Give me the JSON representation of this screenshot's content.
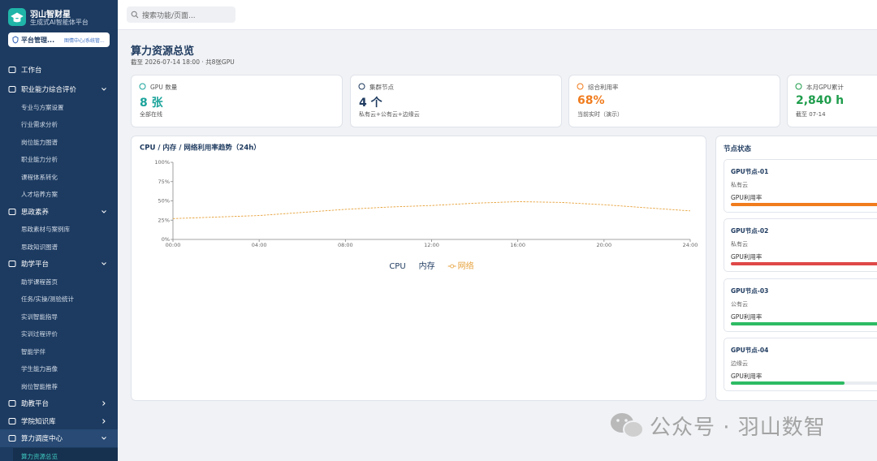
{
  "sidebar": {
    "brand": "羽山智财星",
    "tagline": "生成式AI智能体平台",
    "role_button": {
      "label": "平台管理...",
      "sub": "图情中心/系统管..."
    },
    "menu": [
      {
        "label": "工作台"
      },
      {
        "label": "职业能力综合评价",
        "expanded": true,
        "children": [
          {
            "label": "专业与方案设置"
          },
          {
            "label": "行业需求分析"
          },
          {
            "label": "岗位能力图谱"
          },
          {
            "label": "职业能力分析"
          },
          {
            "label": "课程体系转化"
          },
          {
            "label": "人才培养方案"
          }
        ]
      },
      {
        "label": "思政素养",
        "expanded": true,
        "children": [
          {
            "label": "思政素材与案例库"
          },
          {
            "label": "思政知识图谱"
          }
        ]
      },
      {
        "label": "助学平台",
        "expanded": true,
        "children": [
          {
            "label": "助学课程首页"
          },
          {
            "label": "任务/实操/测验统计"
          },
          {
            "label": "实训智能指导"
          },
          {
            "label": "实训过程评价"
          },
          {
            "label": "智能学伴"
          },
          {
            "label": "学生能力画像"
          },
          {
            "label": "岗位智能推荐"
          }
        ]
      },
      {
        "label": "助教平台",
        "expanded": false
      },
      {
        "label": "学院知识库",
        "expanded": false
      },
      {
        "label": "算力调度中心",
        "expanded": true,
        "children": [
          {
            "label": "算力资源总览",
            "active": true
          }
        ]
      }
    ]
  },
  "topbar": {
    "search_placeholder": "搜索功能/页面..."
  },
  "header": {
    "title": "算力资源总览",
    "subtitle": "截至 2026-07-14 18:00 · 共8张GPU"
  },
  "kpis": [
    {
      "label": "GPU 数量",
      "value": "8 张",
      "note": "全部在线",
      "color": "#1aa39a"
    },
    {
      "label": "集群节点",
      "value": "4 个",
      "note": "私有云+公有云+边缘云",
      "color": "#1e3a5f"
    },
    {
      "label": "综合利用率",
      "value": "68%",
      "note": "当前实时（演示）",
      "color": "#f07c1e"
    },
    {
      "label": "本月GPU累计",
      "value": "2,840 h",
      "note": "截至 07-14",
      "color": "#1f9d4c"
    }
  ],
  "chart_data": {
    "type": "line",
    "title": "CPU / 内存 / 网络利用率趋势（24h）",
    "x": [
      0,
      2,
      4,
      6,
      8,
      10,
      12,
      14,
      16,
      18,
      20,
      22,
      24
    ],
    "xlim": [
      0,
      24
    ],
    "xticks": [
      {
        "value": 0,
        "label": "00:00"
      },
      {
        "value": 4,
        "label": "04:00"
      },
      {
        "value": 8,
        "label": "08:00"
      },
      {
        "value": 12,
        "label": "12:00"
      },
      {
        "value": 16,
        "label": "16:00"
      },
      {
        "value": 20,
        "label": "20:00"
      },
      {
        "value": 24,
        "label": "24:00"
      }
    ],
    "ylim": [
      0,
      100
    ],
    "yticks": [
      {
        "value": 0,
        "label": "0%"
      },
      {
        "value": 25,
        "label": "25%"
      },
      {
        "value": 50,
        "label": "50%"
      },
      {
        "value": 75,
        "label": "75%"
      },
      {
        "value": 100,
        "label": "100%"
      }
    ],
    "grid": false,
    "legend": "bottom",
    "series": [
      {
        "name": "CPU",
        "color": "#1e3a5f",
        "values": [
          null,
          null,
          null,
          null,
          null,
          null,
          null,
          null,
          null,
          null,
          null,
          null,
          null
        ]
      },
      {
        "name": "内存",
        "color": "#1e3a5f",
        "values": [
          null,
          null,
          null,
          null,
          null,
          null,
          null,
          null,
          null,
          null,
          null,
          null,
          null
        ]
      },
      {
        "name": "网络",
        "color": "#e6a23c",
        "line_style": "dashed",
        "values": [
          27,
          29,
          31,
          35,
          39,
          42,
          44,
          47,
          49,
          48,
          45,
          41,
          37
        ]
      }
    ]
  },
  "node_panel": {
    "title": "节点状态",
    "nodes": [
      {
        "name": "GPU节点-01",
        "type": "私有云",
        "metric": "GPU利用率",
        "utilization": 92,
        "color": "#f07c1e"
      },
      {
        "name": "GPU节点-02",
        "type": "私有云",
        "metric": "GPU利用率",
        "utilization": 96,
        "color": "#e04848"
      },
      {
        "name": "GPU节点-03",
        "type": "公有云",
        "metric": "GPU利用率",
        "utilization": 93,
        "color": "#2dbb63"
      },
      {
        "name": "GPU节点-04",
        "type": "边缘云",
        "metric": "GPU利用率",
        "utilization": 70,
        "color": "#2dbb63"
      }
    ]
  },
  "watermark": "公众号 · 羽山数智"
}
